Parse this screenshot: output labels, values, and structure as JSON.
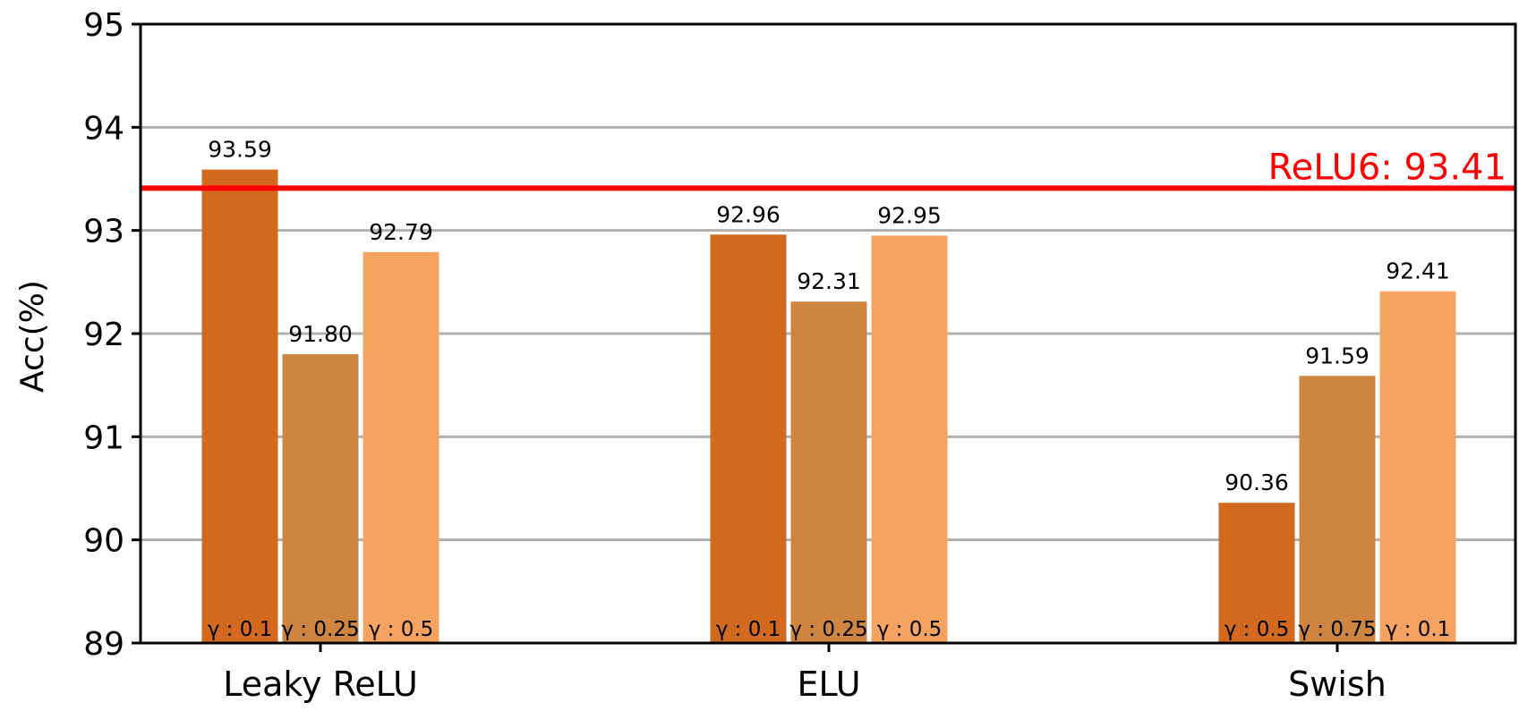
{
  "chart_data": {
    "type": "bar",
    "ylabel": "Acc(%)",
    "ylim": [
      89,
      95
    ],
    "yticks": [
      89,
      90,
      91,
      92,
      93,
      94,
      95
    ],
    "grid": true,
    "categories": [
      "Leaky ReLU",
      "ELU",
      "Swish"
    ],
    "groups": [
      {
        "category": "Leaky ReLU",
        "bars": [
          {
            "value": 93.59,
            "label": "93.59",
            "gamma": "γ : 0.1"
          },
          {
            "value": 91.8,
            "label": "91.80",
            "gamma": "γ : 0.25"
          },
          {
            "value": 92.79,
            "label": "92.79",
            "gamma": "γ : 0.5"
          }
        ]
      },
      {
        "category": "ELU",
        "bars": [
          {
            "value": 92.96,
            "label": "92.96",
            "gamma": "γ : 0.1"
          },
          {
            "value": 92.31,
            "label": "92.31",
            "gamma": "γ : 0.25"
          },
          {
            "value": 92.95,
            "label": "92.95",
            "gamma": "γ : 0.5"
          }
        ]
      },
      {
        "category": "Swish",
        "bars": [
          {
            "value": 90.36,
            "label": "90.36",
            "gamma": "γ : 0.5"
          },
          {
            "value": 91.59,
            "label": "91.59",
            "gamma": "γ : 0.75"
          },
          {
            "value": 92.41,
            "label": "92.41",
            "gamma": "γ : 0.1"
          }
        ]
      }
    ],
    "bar_colors": [
      "#d2691e",
      "#cd853f",
      "#f4a460"
    ],
    "reference_line": {
      "value": 93.41,
      "label": "ReLU6: 93.41",
      "color": "#ff0000"
    }
  }
}
